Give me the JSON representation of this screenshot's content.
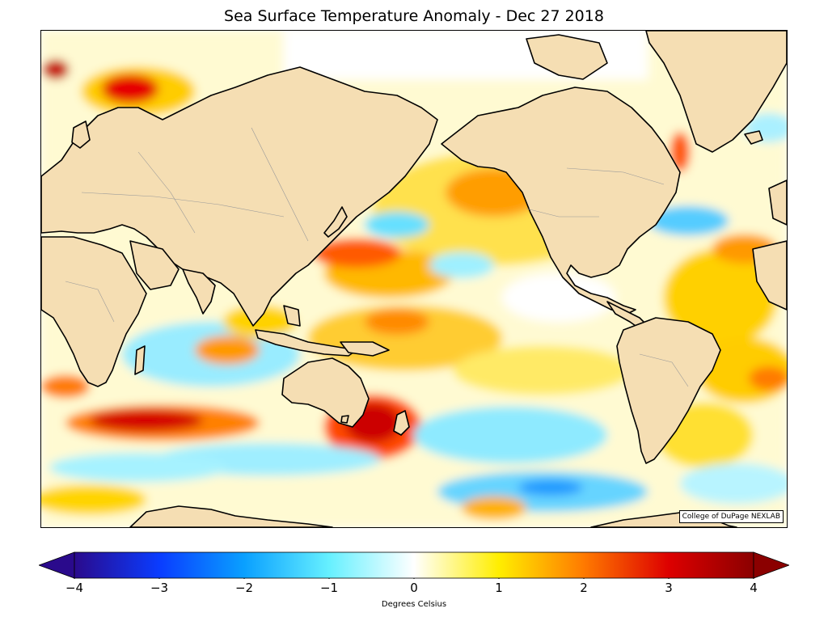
{
  "title": "Sea Surface Temperature Anomaly - Dec 27 2018",
  "credit": "College of DuPage NEXLAB",
  "colorbar": {
    "label": "Degrees Celsius",
    "min": -4,
    "max": 4,
    "ticks": [
      {
        "value": -4,
        "label": "−4"
      },
      {
        "value": -3,
        "label": "−3"
      },
      {
        "value": -2,
        "label": "−2"
      },
      {
        "value": -1,
        "label": "−1"
      },
      {
        "value": 0,
        "label": "0"
      },
      {
        "value": 1,
        "label": "1"
      },
      {
        "value": 2,
        "label": "2"
      },
      {
        "value": 3,
        "label": "3"
      },
      {
        "value": 4,
        "label": "4"
      }
    ],
    "stops": [
      {
        "value": -4,
        "color": "#2a0a8c"
      },
      {
        "value": -3,
        "color": "#0a3cff"
      },
      {
        "value": -2,
        "color": "#0aa0ff"
      },
      {
        "value": -1,
        "color": "#66f0ff"
      },
      {
        "value": 0,
        "color": "#ffffff"
      },
      {
        "value": 1,
        "color": "#ffee00"
      },
      {
        "value": 2,
        "color": "#ff7a00"
      },
      {
        "value": 3,
        "color": "#dd0000"
      },
      {
        "value": 4,
        "color": "#8b0000"
      }
    ],
    "extend": "both"
  },
  "map": {
    "land_color": "#f5deb3",
    "coastline_color": "#000000",
    "border_color": "#999999"
  }
}
